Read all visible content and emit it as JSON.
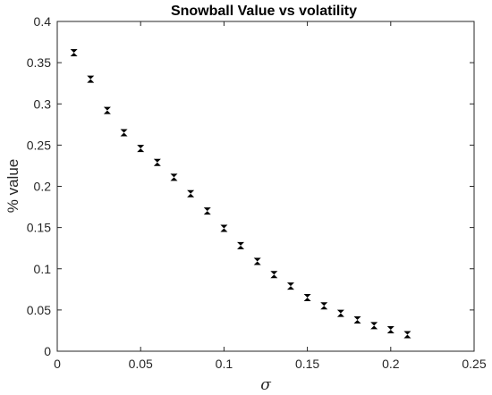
{
  "chart_data": {
    "type": "scatter",
    "title": "Snowball Value vs volatility",
    "xlabel": "σ",
    "ylabel": "% value",
    "xlim": [
      0,
      0.25
    ],
    "ylim": [
      0,
      0.4
    ],
    "x_ticks": [
      "0",
      "0.05",
      "0.1",
      "0.15",
      "0.2",
      "0.25"
    ],
    "y_ticks": [
      "0",
      "0.05",
      "0.1",
      "0.15",
      "0.2",
      "0.25",
      "0.3",
      "0.35",
      "0.4"
    ],
    "grid": false,
    "marker": "bowtie",
    "marker_color": "#000000",
    "series": [
      {
        "x": [
          0.01,
          0.02,
          0.03,
          0.04,
          0.05,
          0.06,
          0.07,
          0.08,
          0.09,
          0.1,
          0.11,
          0.12,
          0.13,
          0.14,
          0.15,
          0.16,
          0.17,
          0.18,
          0.19,
          0.2,
          0.21
        ],
        "y": [
          0.362,
          0.33,
          0.292,
          0.265,
          0.246,
          0.229,
          0.211,
          0.191,
          0.17,
          0.149,
          0.128,
          0.109,
          0.093,
          0.079,
          0.065,
          0.055,
          0.046,
          0.038,
          0.031,
          0.026,
          0.02
        ]
      }
    ]
  }
}
